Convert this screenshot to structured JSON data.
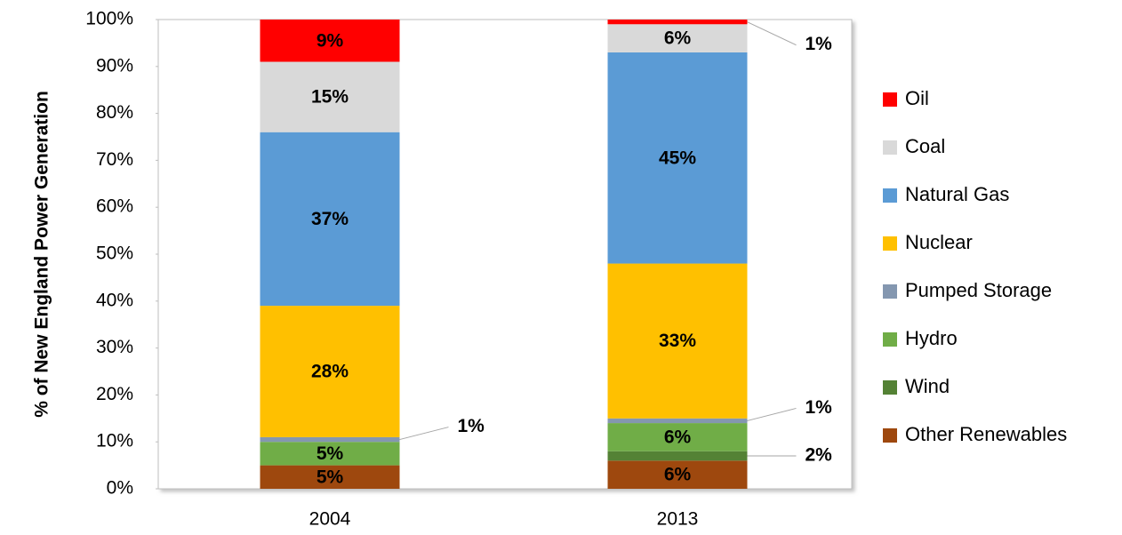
{
  "chart_data": {
    "type": "stacked_bar",
    "y_label": "% of New England Power Generation",
    "categories": [
      "2004",
      "2013"
    ],
    "ylim": [
      0,
      100
    ],
    "yticks": [
      {
        "value": 0,
        "label": "0%"
      },
      {
        "value": 10,
        "label": "10%"
      },
      {
        "value": 20,
        "label": "20%"
      },
      {
        "value": 30,
        "label": "30%"
      },
      {
        "value": 40,
        "label": "40%"
      },
      {
        "value": 50,
        "label": "50%"
      },
      {
        "value": 60,
        "label": "60%"
      },
      {
        "value": 70,
        "label": "70%"
      },
      {
        "value": 80,
        "label": "80%"
      },
      {
        "value": 90,
        "label": "90%"
      },
      {
        "value": 100,
        "label": "100%"
      }
    ],
    "series": [
      {
        "name": "Other Renewables",
        "color": "#9e480e",
        "values": [
          5,
          6
        ],
        "value_labels": [
          "5%",
          "6%"
        ]
      },
      {
        "name": "Wind",
        "color": "#548235",
        "values": [
          0,
          2
        ],
        "value_labels": [
          null,
          "2%"
        ]
      },
      {
        "name": "Hydro",
        "color": "#70ad47",
        "values": [
          5,
          6
        ],
        "value_labels": [
          "5%",
          "6%"
        ]
      },
      {
        "name": "Pumped Storage",
        "color": "#8497b0",
        "values": [
          1,
          1
        ],
        "value_labels": [
          "1%",
          "1%"
        ]
      },
      {
        "name": "Nuclear",
        "color": "#ffc000",
        "values": [
          28,
          33
        ],
        "value_labels": [
          "28%",
          "33%"
        ]
      },
      {
        "name": "Natural Gas",
        "color": "#5b9bd5",
        "values": [
          37,
          45
        ],
        "value_labels": [
          "37%",
          "45%"
        ]
      },
      {
        "name": "Coal",
        "color": "#d9d9d9",
        "values": [
          15,
          6
        ],
        "value_labels": [
          "15%",
          "6%"
        ]
      },
      {
        "name": "Oil",
        "color": "#ff0000",
        "values": [
          9,
          1
        ],
        "value_labels": [
          "9%",
          "1%"
        ]
      }
    ]
  }
}
